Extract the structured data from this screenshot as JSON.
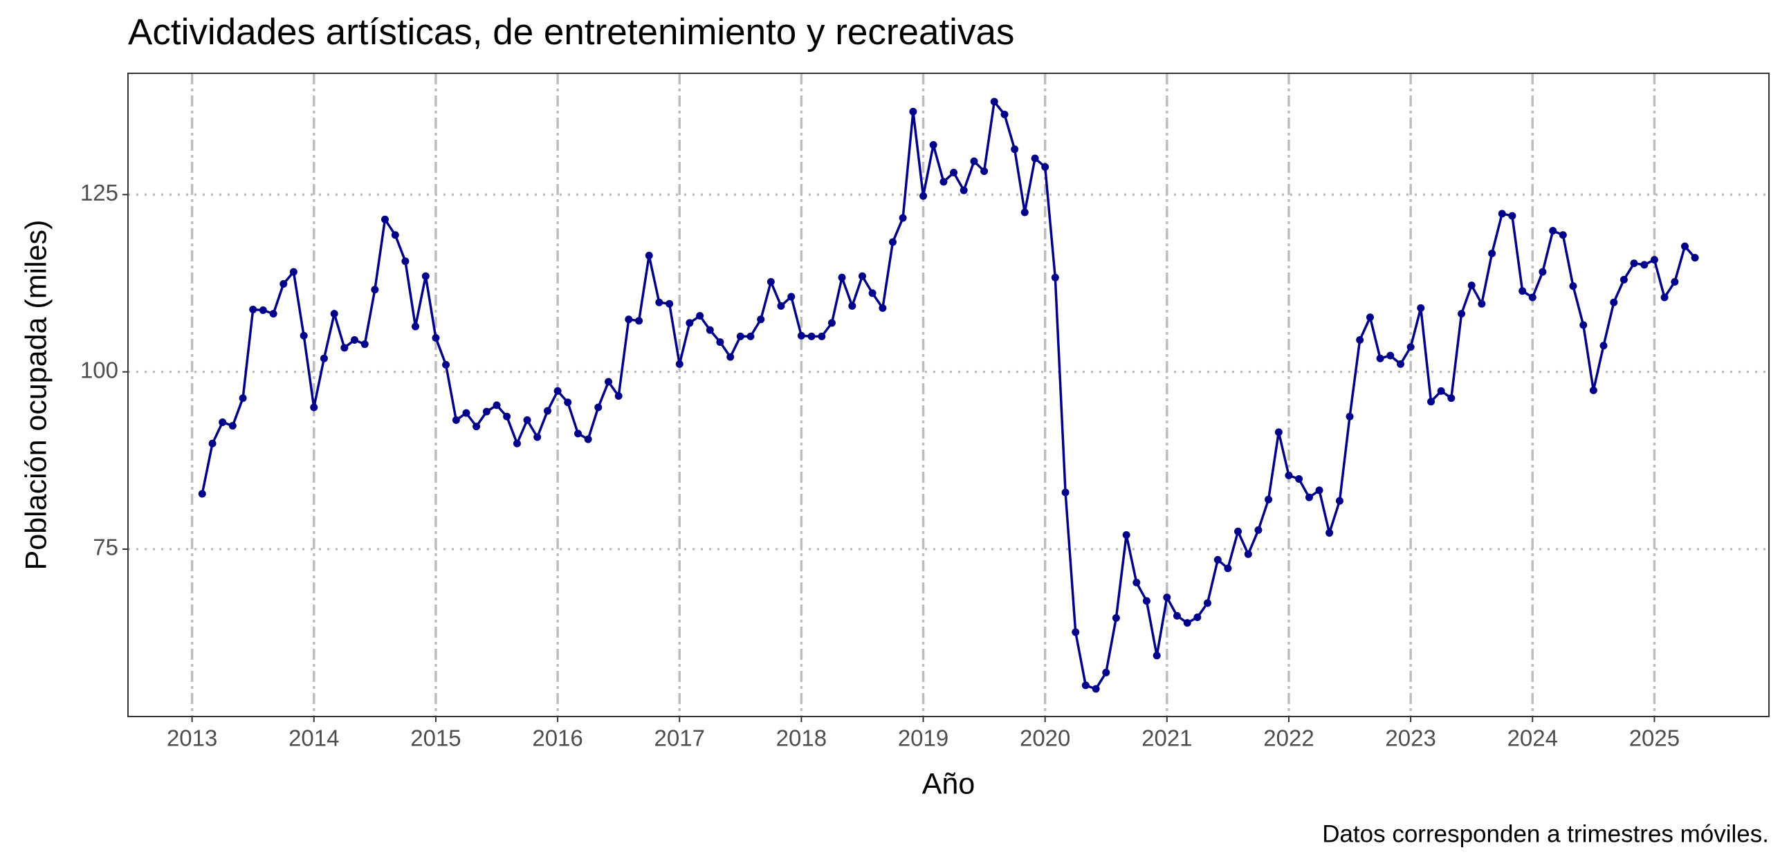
{
  "chart_data": {
    "type": "line",
    "title": "Actividades artísticas, de entretenimiento y recreativas",
    "xlabel": "Año",
    "ylabel": "Población ocupada (miles)",
    "caption": "Datos corresponden a trimestres móviles.",
    "color": "#00008b",
    "grid": true,
    "x": [
      2013.083,
      2013.167,
      2013.25,
      2013.333,
      2013.417,
      2013.5,
      2013.583,
      2013.667,
      2013.75,
      2013.833,
      2013.917,
      2014,
      2014.083,
      2014.167,
      2014.25,
      2014.333,
      2014.417,
      2014.5,
      2014.583,
      2014.667,
      2014.75,
      2014.833,
      2014.917,
      2015,
      2015.083,
      2015.167,
      2015.25,
      2015.333,
      2015.417,
      2015.5,
      2015.583,
      2015.667,
      2015.75,
      2015.833,
      2015.917,
      2016,
      2016.083,
      2016.167,
      2016.25,
      2016.333,
      2016.417,
      2016.5,
      2016.583,
      2016.667,
      2016.75,
      2016.833,
      2016.917,
      2017,
      2017.083,
      2017.167,
      2017.25,
      2017.333,
      2017.417,
      2017.5,
      2017.583,
      2017.667,
      2017.75,
      2017.833,
      2017.917,
      2018,
      2018.083,
      2018.167,
      2018.25,
      2018.333,
      2018.417,
      2018.5,
      2018.583,
      2018.667,
      2018.75,
      2018.833,
      2018.917,
      2019,
      2019.083,
      2019.167,
      2019.25,
      2019.333,
      2019.417,
      2019.5,
      2019.583,
      2019.667,
      2019.75,
      2019.833,
      2019.917,
      2020,
      2020.083,
      2020.167,
      2020.25,
      2020.333,
      2020.417,
      2020.5,
      2020.583,
      2020.667,
      2020.75,
      2020.833,
      2020.917,
      2021,
      2021.083,
      2021.167,
      2021.25,
      2021.333,
      2021.417,
      2021.5,
      2021.583,
      2021.667,
      2021.75,
      2021.833,
      2021.917,
      2022,
      2022.083,
      2022.167,
      2022.25,
      2022.333,
      2022.417,
      2022.5,
      2022.583,
      2022.667,
      2022.75,
      2022.833,
      2022.917,
      2023,
      2023.083,
      2023.167,
      2023.25,
      2023.333,
      2023.417,
      2023.5,
      2023.583,
      2023.667,
      2023.75,
      2023.833,
      2023.917,
      2024,
      2024.083,
      2024.167,
      2024.25,
      2024.333,
      2024.417,
      2024.5,
      2024.583,
      2024.667,
      2024.75,
      2024.833,
      2024.917,
      2025,
      2025.083,
      2025.167,
      2025.25,
      2025.333
    ],
    "values": [
      82.8,
      89.9,
      92.9,
      92.4,
      96.3,
      108.8,
      108.7,
      108.2,
      112.4,
      114.1,
      105.1,
      95.0,
      101.9,
      108.2,
      103.4,
      104.5,
      103.9,
      111.6,
      121.5,
      119.3,
      115.6,
      106.4,
      113.5,
      104.8,
      101.0,
      93.2,
      94.2,
      92.3,
      94.4,
      95.3,
      93.7,
      89.9,
      93.2,
      90.8,
      94.5,
      97.3,
      95.7,
      91.3,
      90.5,
      95.0,
      98.6,
      96.6,
      107.4,
      107.2,
      116.4,
      109.8,
      109.6,
      101.1,
      106.9,
      107.9,
      105.9,
      104.2,
      102.1,
      105.0,
      105.0,
      107.4,
      112.7,
      109.3,
      110.6,
      105.1,
      105.0,
      105.0,
      106.9,
      113.3,
      109.3,
      113.5,
      111.1,
      109.0,
      118.3,
      121.7,
      136.7,
      124.8,
      132.0,
      126.8,
      128.1,
      125.6,
      129.7,
      128.3,
      138.1,
      136.3,
      131.4,
      122.5,
      130.1,
      128.9,
      113.3,
      83.0,
      63.3,
      55.8,
      55.3,
      57.6,
      65.3,
      77.0,
      70.3,
      67.7,
      60.0,
      68.2,
      65.6,
      64.6,
      65.4,
      67.4,
      73.5,
      72.3,
      77.5,
      74.3,
      77.7,
      82.0,
      91.5,
      85.4,
      84.9,
      82.3,
      83.3,
      77.3,
      81.8,
      93.7,
      104.5,
      107.7,
      101.9,
      102.3,
      101.1,
      103.5,
      109.0,
      95.8,
      97.3,
      96.3,
      108.2,
      112.2,
      109.6,
      116.7,
      122.3,
      122.0,
      111.4,
      110.5,
      114.1,
      119.9,
      119.3,
      112.1,
      106.6,
      97.4,
      103.7,
      109.8,
      113.0,
      115.3,
      115.1,
      115.8,
      110.5,
      112.7,
      117.7,
      116.1
    ],
    "xlim": [
      2012.474,
      2025.94
    ],
    "ylim": [
      51.4,
      142.1
    ],
    "xticks": [
      2013,
      2014,
      2015,
      2016,
      2017,
      2018,
      2019,
      2020,
      2021,
      2022,
      2023,
      2024,
      2025
    ],
    "yticks": [
      75,
      100,
      125
    ]
  }
}
